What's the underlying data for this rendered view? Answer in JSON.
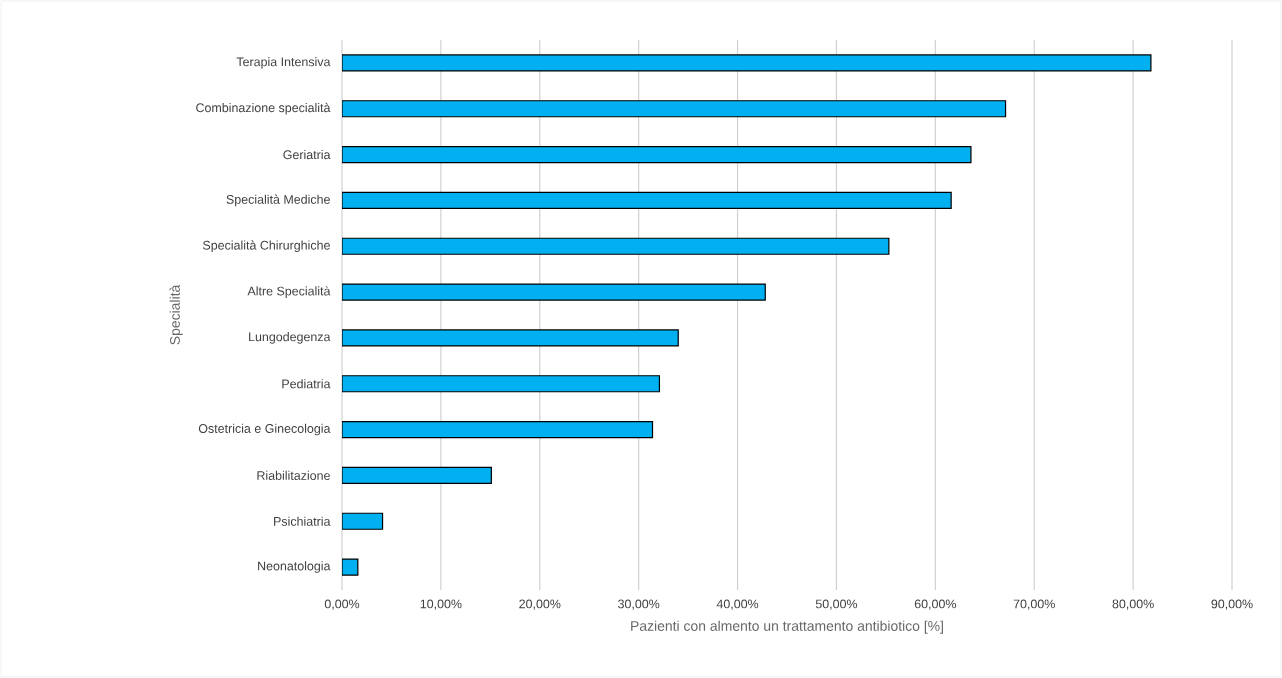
{
  "chart_data": {
    "type": "bar",
    "orientation": "horizontal",
    "xlabel": "Pazienti con almento un trattamento antibiotico [%]",
    "ylabel": "Specialità",
    "categories": [
      "Terapia Intensiva",
      "Combinazione specialità",
      "Geriatria",
      "Specialità Mediche",
      "Specialità Chirurghiche",
      "Altre Specialità",
      "Lungodegenza",
      "Pediatria",
      "Ostetricia e Ginecologia",
      "Riabilitazione",
      "Psichiatria",
      "Neonatologia"
    ],
    "values": [
      81.8,
      67.1,
      63.6,
      61.6,
      55.3,
      42.8,
      34.0,
      32.1,
      31.4,
      15.1,
      4.1,
      1.6
    ],
    "color": "#00b0f0",
    "xlim": [
      0,
      90
    ],
    "xticks": [
      {
        "value": 0,
        "label": "0,00%"
      },
      {
        "value": 10,
        "label": "10,00%"
      },
      {
        "value": 20,
        "label": "20,00%"
      },
      {
        "value": 30,
        "label": "30,00%"
      },
      {
        "value": 40,
        "label": "40,00%"
      },
      {
        "value": 50,
        "label": "50,00%"
      },
      {
        "value": 60,
        "label": "60,00%"
      },
      {
        "value": 70,
        "label": "70,00%"
      },
      {
        "value": 80,
        "label": "80,00%"
      },
      {
        "value": 90,
        "label": "90,00%"
      }
    ],
    "grid": "x"
  }
}
